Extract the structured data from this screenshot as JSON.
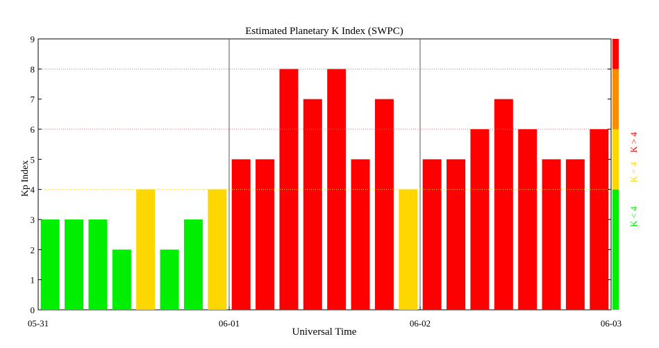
{
  "chart_data": {
    "type": "bar",
    "title": "Estimated Planetary K Index (SWPC)",
    "xlabel": "Universal Time",
    "ylabel": "Kp Index",
    "ylim": [
      0,
      9
    ],
    "yticks": [
      "0",
      "1",
      "2",
      "3",
      "4",
      "5",
      "6",
      "7",
      "8",
      "9"
    ],
    "day_labels": [
      "05-31",
      "06-01",
      "06-02",
      "06-03"
    ],
    "values": [
      3,
      3,
      3,
      2,
      4,
      2,
      3,
      4,
      5,
      5,
      8,
      7,
      8,
      5,
      7,
      4,
      5,
      5,
      6,
      7,
      6,
      5,
      5,
      6
    ],
    "reference_lines": [
      4,
      6,
      8
    ],
    "colors": {
      "low": "#00ee00",
      "mid": "#ffd700",
      "high": "#ff0000",
      "storm_orange": "#ff8c00",
      "ref_line_red": "#ff6666",
      "ref_line_yellow": "#ffd700"
    },
    "legend": [
      {
        "label": "K < 4",
        "color": "#00ee00"
      },
      {
        "label": "K = 4",
        "color": "#ffd700"
      },
      {
        "label": "K > 4",
        "color": "#ff0000"
      }
    ]
  }
}
